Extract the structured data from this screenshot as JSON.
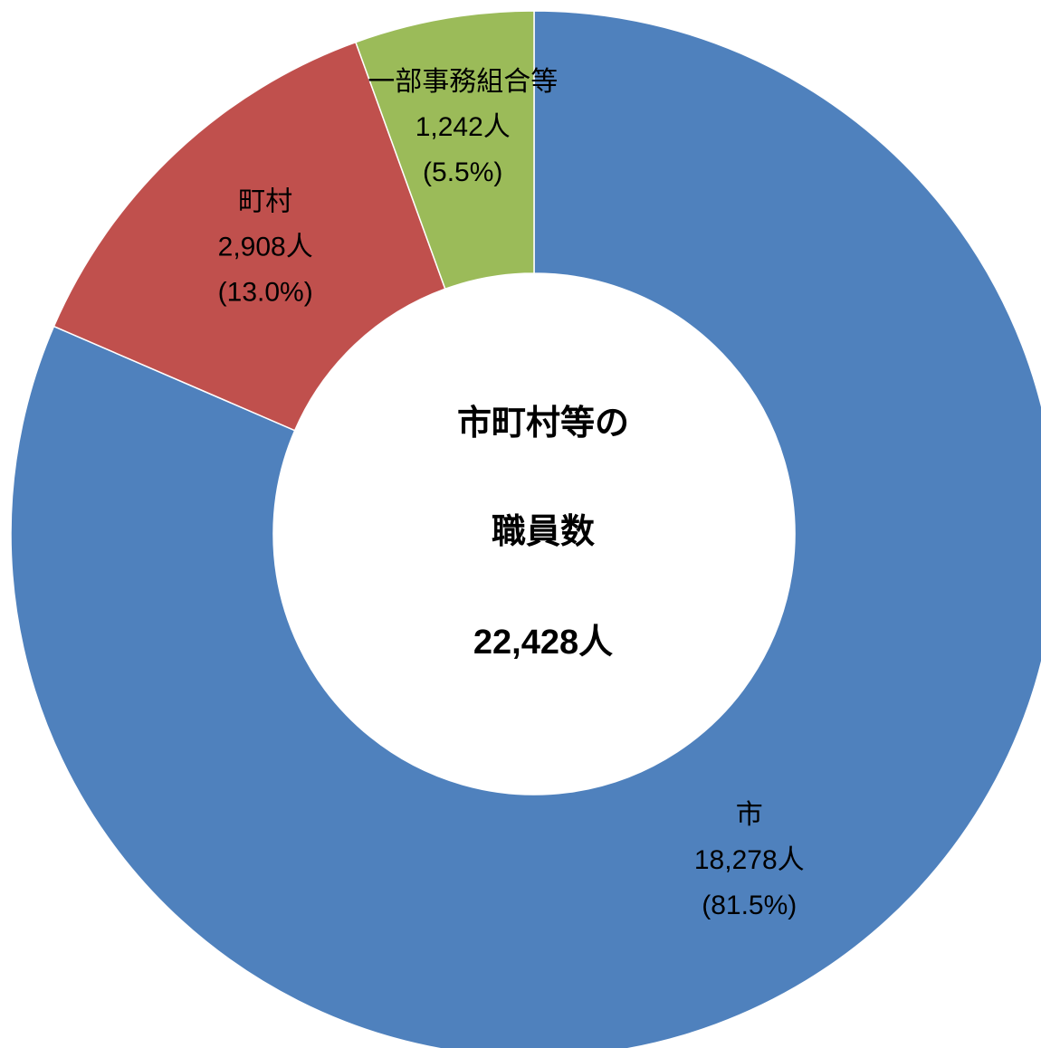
{
  "chart_data": {
    "type": "donut",
    "center_text": [
      "市町村等の",
      "職員数"
    ],
    "total": {
      "value": 22428,
      "label": "22,428人"
    },
    "categories": [
      "市",
      "町村",
      "一部事務組合等"
    ],
    "values": [
      18278,
      2908,
      1242
    ],
    "value_labels": [
      "18,278人",
      "2,908人",
      "1,242人"
    ],
    "percentages": [
      81.5,
      13.0,
      5.5
    ],
    "percentage_labels": [
      "(81.5%)",
      "(13.0%)",
      "(5.5%)"
    ],
    "colors": [
      "#4f81bd",
      "#c0504d",
      "#9bbb59"
    ]
  }
}
